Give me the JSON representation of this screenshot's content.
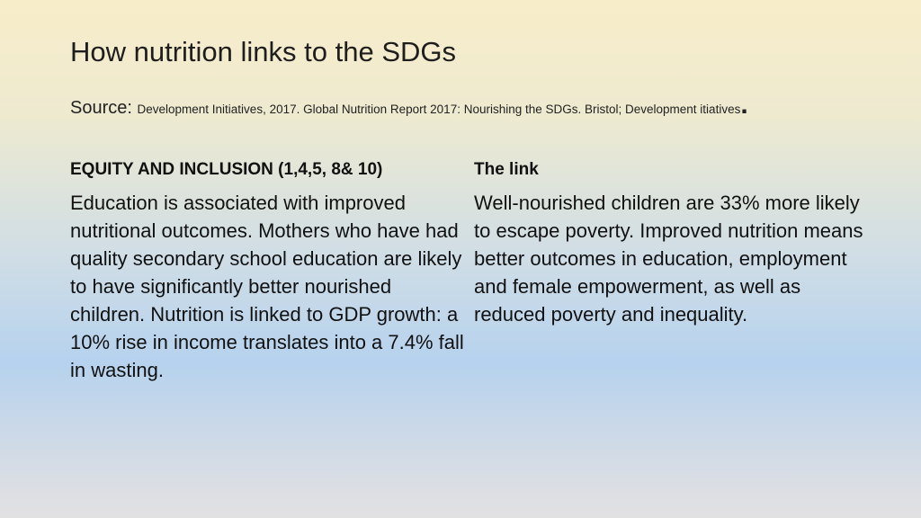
{
  "header": {
    "title": "How nutrition links to the SDGs",
    "source_label": "Source:",
    "source_text": "Development Initiatives, 2017. Global Nutrition Report 2017: Nourishing the SDGs. Bristol; Development itiatives",
    "source_end": "."
  },
  "columns": [
    {
      "heading": "EQUITY AND INCLUSION (1,4,5, 8& 10)",
      "body": "Education is associated with improved nutritional outcomes. Mothers who have had quality secondary school education are likely to have significantly better nourished children. Nutrition is linked to GDP growth: a 10% rise in income translates into a 7.4% fall in wasting."
    },
    {
      "heading": "The link",
      "body": "Well-nourished children are 33% more likely to escape poverty. Improved nutrition means better outcomes in education, employment and female empowerment, as well as reduced poverty and inequality."
    }
  ]
}
